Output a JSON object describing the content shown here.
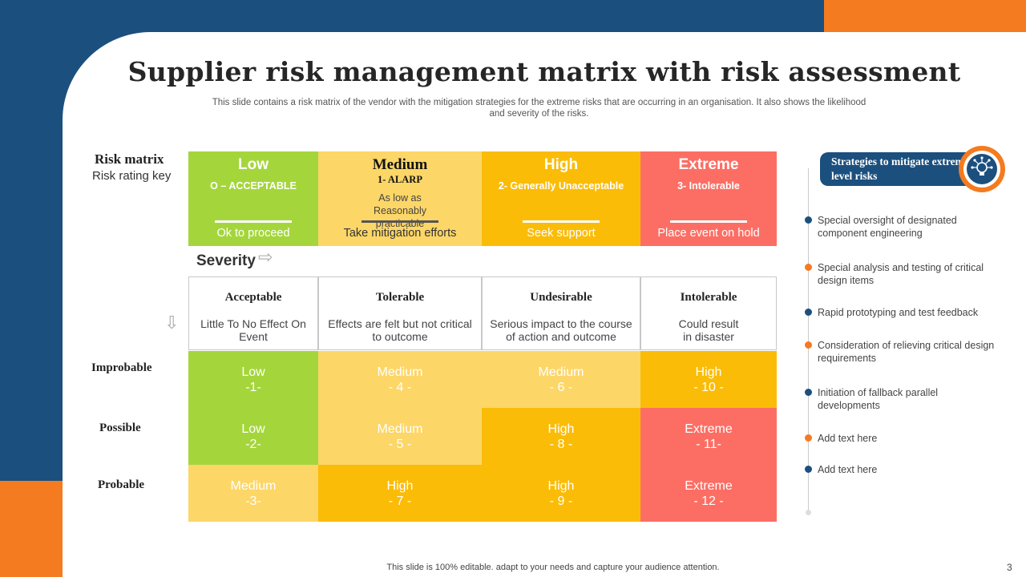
{
  "title": "Supplier risk management matrix with risk assessment",
  "subtitle": "This slide  contains a risk matrix of the vendor with the mitigation strategies for the extreme risks that are occurring in an organisation. It also shows the likelihood and severity of the risks.",
  "risk_matrix": {
    "title": "Risk matrix",
    "subtitle": "Risk rating key"
  },
  "rating_key": [
    {
      "level": "Low",
      "code": "O – ACCEPTABLE",
      "extra": "",
      "action": "Ok to proceed",
      "color": "#a4d63c"
    },
    {
      "level": "Medium",
      "code": "1- ALARP",
      "extra": "As low as Reasonably  practicable",
      "action": "Take mitigation efforts",
      "color": "#fcd667"
    },
    {
      "level": "High",
      "code": "2- Generally Unacceptable",
      "extra": "",
      "action": "Seek support",
      "color": "#fbbc07"
    },
    {
      "level": "Extreme",
      "code": "3- Intolerable",
      "extra": "",
      "action": "Place event on hold",
      "color": "#fc6e64"
    }
  ],
  "severity_label": "Severity",
  "severity": [
    {
      "name": "Acceptable",
      "desc": "Little To No Effect On Event"
    },
    {
      "name": "Tolerable",
      "desc": "Effects are felt but not critical to outcome"
    },
    {
      "name": "Undesirable",
      "desc": "Serious impact to the course of action and outcome"
    },
    {
      "name": "Intolerable",
      "desc": "Could result in disaster"
    }
  ],
  "likelihood": [
    "Improbable",
    "Possible",
    "Probable"
  ],
  "matrix": [
    [
      {
        "label": "Low",
        "score": "-1-",
        "color": "#a4d63c"
      },
      {
        "label": "Medium",
        "score": "- 4 -",
        "color": "#fcd667"
      },
      {
        "label": "Medium",
        "score": "- 6 -",
        "color": "#fcd667"
      },
      {
        "label": "High",
        "score": "- 10 -",
        "color": "#fbbc07"
      }
    ],
    [
      {
        "label": "Low",
        "score": "-2-",
        "color": "#a4d63c"
      },
      {
        "label": "Medium",
        "score": "- 5 -",
        "color": "#fcd667"
      },
      {
        "label": "High",
        "score": "- 8 -",
        "color": "#fbbc07"
      },
      {
        "label": "Extreme",
        "score": "- 11-",
        "color": "#fc6e64"
      }
    ],
    [
      {
        "label": "Medium",
        "score": "-3-",
        "color": "#fcd667"
      },
      {
        "label": "High",
        "score": "- 7 -",
        "color": "#fbbc07"
      },
      {
        "label": "High",
        "score": "- 9 -",
        "color": "#fbbc07"
      },
      {
        "label": "Extreme",
        "score": "- 12 -",
        "color": "#fc6e64"
      }
    ]
  ],
  "strategies": {
    "title": "Strategies to mitigate extreme level risks",
    "icon": "lightbulb-network-icon",
    "items": [
      {
        "text": "Special oversight  of designated component engineering",
        "color": "#1b4f7e"
      },
      {
        "text": "Special analysis and testing of critical design items",
        "color": "#f47b20"
      },
      {
        "text": "Rapid prototyping and test feedback",
        "color": "#1b4f7e"
      },
      {
        "text": "Consideration of relieving  critical design requirements",
        "color": "#f47b20"
      },
      {
        "text": "Initiation of fallback parallel developments",
        "color": "#1b4f7e"
      },
      {
        "text": "Add text here",
        "color": "#f47b20"
      },
      {
        "text": "Add text here",
        "color": "#1b4f7e"
      }
    ]
  },
  "footer": "This slide is 100% editable. adapt to your needs and capture your audience attention.",
  "page_number": "3",
  "colors": {
    "navy": "#1b4f7e",
    "orange": "#f47b20"
  }
}
